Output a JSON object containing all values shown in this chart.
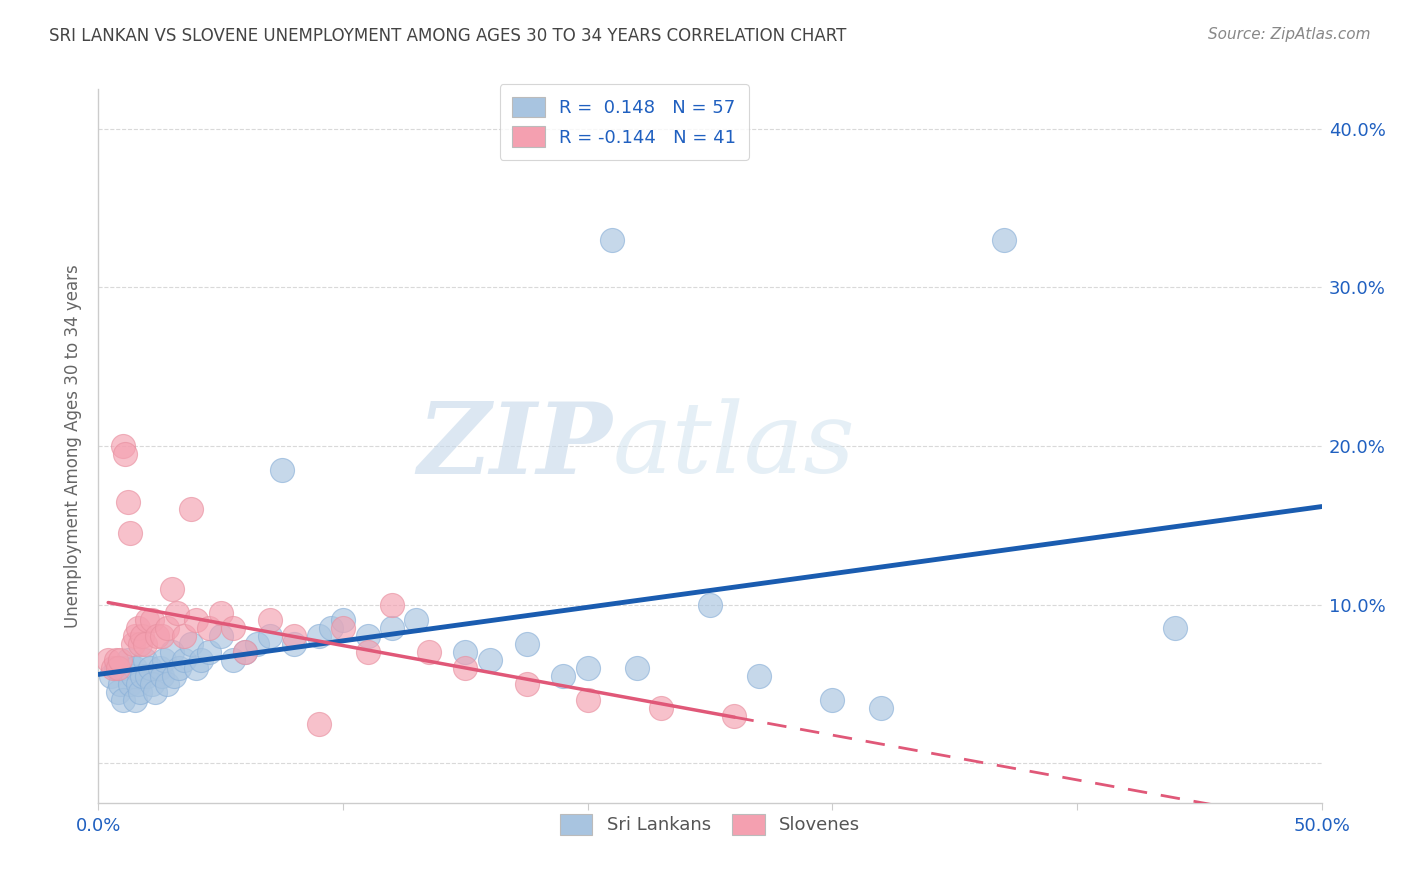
{
  "title": "SRI LANKAN VS SLOVENE UNEMPLOYMENT AMONG AGES 30 TO 34 YEARS CORRELATION CHART",
  "source": "Source: ZipAtlas.com",
  "ylabel": "Unemployment Among Ages 30 to 34 years",
  "xlim": [
    0.0,
    0.5
  ],
  "ylim": [
    -0.025,
    0.425
  ],
  "x_ticks": [
    0.0,
    0.1,
    0.2,
    0.3,
    0.4,
    0.5
  ],
  "y_ticks": [
    0.0,
    0.1,
    0.2,
    0.3,
    0.4
  ],
  "x_tick_labels": [
    "0.0%",
    "",
    "",
    "",
    "",
    "50.0%"
  ],
  "y_tick_labels_right": [
    "",
    "10.0%",
    "20.0%",
    "30.0%",
    "40.0%"
  ],
  "watermark_zip": "ZIP",
  "watermark_atlas": "atlas",
  "sri_lankan_color": "#a8c4e0",
  "slovene_color": "#f4a0b0",
  "sri_lankan_line_color": "#1a5cb0",
  "slovene_line_color": "#e05878",
  "legend_sri_r": "0.148",
  "legend_sri_n": "57",
  "legend_slo_r": "-0.144",
  "legend_slo_n": "41",
  "sri_lankan_x": [
    0.005,
    0.007,
    0.008,
    0.009,
    0.01,
    0.01,
    0.012,
    0.013,
    0.014,
    0.015,
    0.015,
    0.016,
    0.017,
    0.018,
    0.019,
    0.02,
    0.021,
    0.022,
    0.023,
    0.025,
    0.026,
    0.027,
    0.028,
    0.03,
    0.031,
    0.033,
    0.035,
    0.038,
    0.04,
    0.042,
    0.045,
    0.05,
    0.055,
    0.06,
    0.065,
    0.07,
    0.075,
    0.08,
    0.09,
    0.095,
    0.1,
    0.11,
    0.12,
    0.13,
    0.15,
    0.16,
    0.175,
    0.19,
    0.2,
    0.21,
    0.22,
    0.25,
    0.27,
    0.3,
    0.32,
    0.37,
    0.44
  ],
  "sri_lankan_y": [
    0.055,
    0.06,
    0.045,
    0.05,
    0.06,
    0.04,
    0.065,
    0.05,
    0.055,
    0.06,
    0.04,
    0.05,
    0.045,
    0.055,
    0.065,
    0.055,
    0.06,
    0.05,
    0.045,
    0.06,
    0.055,
    0.065,
    0.05,
    0.07,
    0.055,
    0.06,
    0.065,
    0.075,
    0.06,
    0.065,
    0.07,
    0.08,
    0.065,
    0.07,
    0.075,
    0.08,
    0.185,
    0.075,
    0.08,
    0.085,
    0.09,
    0.08,
    0.085,
    0.09,
    0.07,
    0.065,
    0.075,
    0.055,
    0.06,
    0.33,
    0.06,
    0.1,
    0.055,
    0.04,
    0.035,
    0.33,
    0.085
  ],
  "slovene_x": [
    0.004,
    0.006,
    0.007,
    0.008,
    0.009,
    0.01,
    0.011,
    0.012,
    0.013,
    0.014,
    0.015,
    0.016,
    0.017,
    0.018,
    0.019,
    0.02,
    0.022,
    0.024,
    0.026,
    0.028,
    0.03,
    0.032,
    0.035,
    0.038,
    0.04,
    0.045,
    0.05,
    0.055,
    0.06,
    0.07,
    0.08,
    0.09,
    0.1,
    0.11,
    0.12,
    0.135,
    0.15,
    0.175,
    0.2,
    0.23,
    0.26
  ],
  "slovene_y": [
    0.065,
    0.06,
    0.065,
    0.06,
    0.065,
    0.2,
    0.195,
    0.165,
    0.145,
    0.075,
    0.08,
    0.085,
    0.075,
    0.08,
    0.075,
    0.09,
    0.09,
    0.08,
    0.08,
    0.085,
    0.11,
    0.095,
    0.08,
    0.16,
    0.09,
    0.085,
    0.095,
    0.085,
    0.07,
    0.09,
    0.08,
    0.025,
    0.085,
    0.07,
    0.1,
    0.07,
    0.06,
    0.05,
    0.04,
    0.035,
    0.03
  ],
  "background_color": "#ffffff",
  "grid_color": "#d0d0d0",
  "title_color": "#444444",
  "source_color": "#888888",
  "axis_color": "#2060c0",
  "ylabel_color": "#666666"
}
